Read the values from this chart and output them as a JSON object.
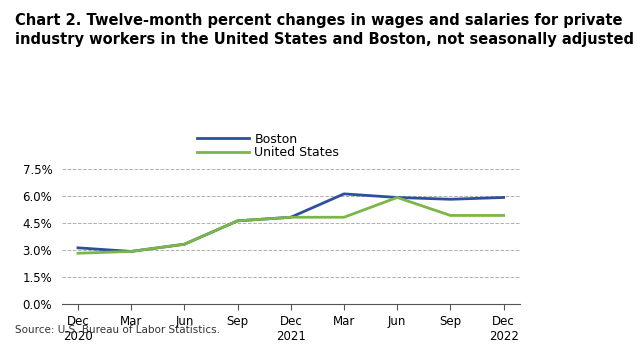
{
  "title_line1": "Chart 2. Twelve-month percent changes in wages and salaries for private",
  "title_line2": "industry workers in the United States and Boston, not seasonally adjusted",
  "source": "Source: U.S. Bureau of Labor Statistics.",
  "x_labels": [
    "Dec\n2020",
    "Mar",
    "Jun",
    "Sep",
    "Dec\n2021",
    "Mar",
    "Jun",
    "Sep",
    "Dec\n2022"
  ],
  "x_positions": [
    0,
    1,
    2,
    3,
    4,
    5,
    6,
    7,
    8
  ],
  "boston": [
    0.031,
    0.029,
    0.033,
    0.046,
    0.048,
    0.061,
    0.059,
    0.058,
    0.059
  ],
  "us": [
    0.028,
    0.029,
    0.033,
    0.046,
    0.048,
    0.048,
    0.059,
    0.049,
    0.049
  ],
  "boston_color": "#2e4f9e",
  "us_color": "#7ab648",
  "line_width": 2.0,
  "legend_labels": [
    "Boston",
    "United States"
  ],
  "ylim": [
    0.0,
    0.08
  ],
  "yticks": [
    0.0,
    0.015,
    0.03,
    0.045,
    0.06,
    0.075
  ],
  "ytick_labels": [
    "0.0%",
    "1.5%",
    "3.0%",
    "4.5%",
    "6.0%",
    "7.5%"
  ],
  "grid_color": "#b0b0b0",
  "background_color": "#ffffff",
  "title_fontsize": 10.5,
  "legend_fontsize": 9,
  "tick_fontsize": 8.5,
  "source_fontsize": 7.5
}
